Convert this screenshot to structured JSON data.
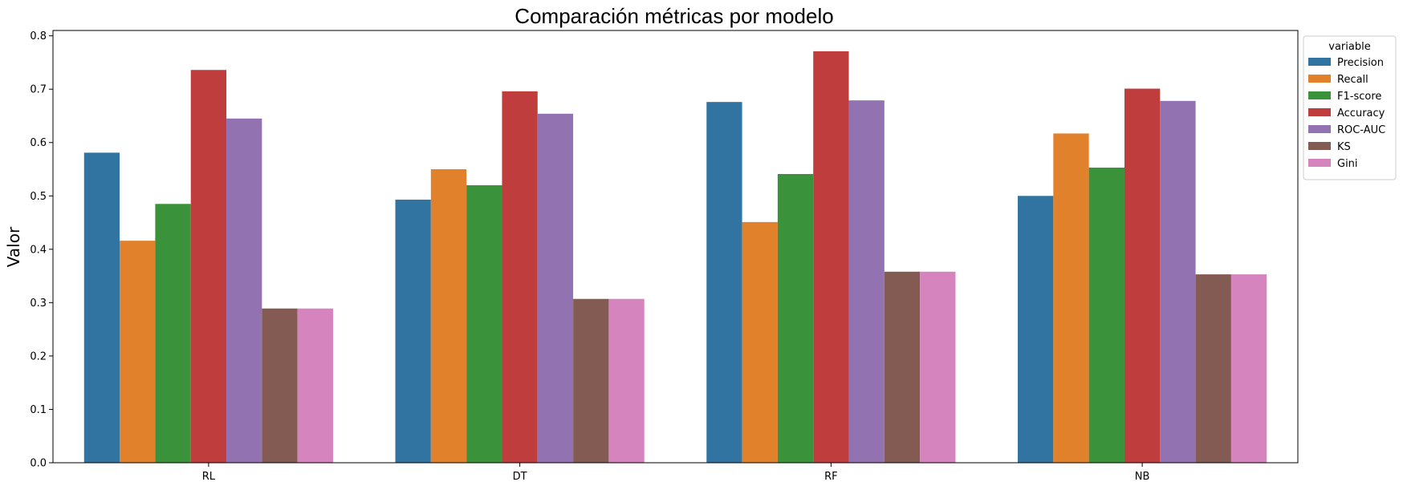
{
  "chart_data": {
    "type": "bar",
    "title": "Comparación métricas por modelo",
    "xlabel": "",
    "ylabel": "Valor",
    "ylim": [
      0,
      0.81
    ],
    "yticks": [
      "0.0",
      "0.1",
      "0.2",
      "0.3",
      "0.4",
      "0.5",
      "0.6",
      "0.7",
      "0.8"
    ],
    "categories": [
      "RL",
      "DT",
      "RF",
      "NB"
    ],
    "legend": {
      "title": "variable",
      "placement": "upper right, outside plot"
    },
    "grid": false,
    "series": [
      {
        "name": "Precision",
        "color": "#3274a1",
        "values": [
          0.581,
          0.493,
          0.676,
          0.5
        ]
      },
      {
        "name": "Recall",
        "color": "#e1812c",
        "values": [
          0.416,
          0.55,
          0.451,
          0.617
        ]
      },
      {
        "name": "F1-score",
        "color": "#3a923a",
        "values": [
          0.485,
          0.52,
          0.541,
          0.553
        ]
      },
      {
        "name": "Accuracy",
        "color": "#c03d3e",
        "values": [
          0.736,
          0.696,
          0.771,
          0.701
        ]
      },
      {
        "name": "ROC-AUC",
        "color": "#9372b2",
        "values": [
          0.645,
          0.654,
          0.679,
          0.678
        ]
      },
      {
        "name": "KS",
        "color": "#845b53",
        "values": [
          0.289,
          0.307,
          0.358,
          0.353
        ]
      },
      {
        "name": "Gini",
        "color": "#d684bd",
        "values": [
          0.289,
          0.307,
          0.358,
          0.353
        ]
      }
    ]
  }
}
